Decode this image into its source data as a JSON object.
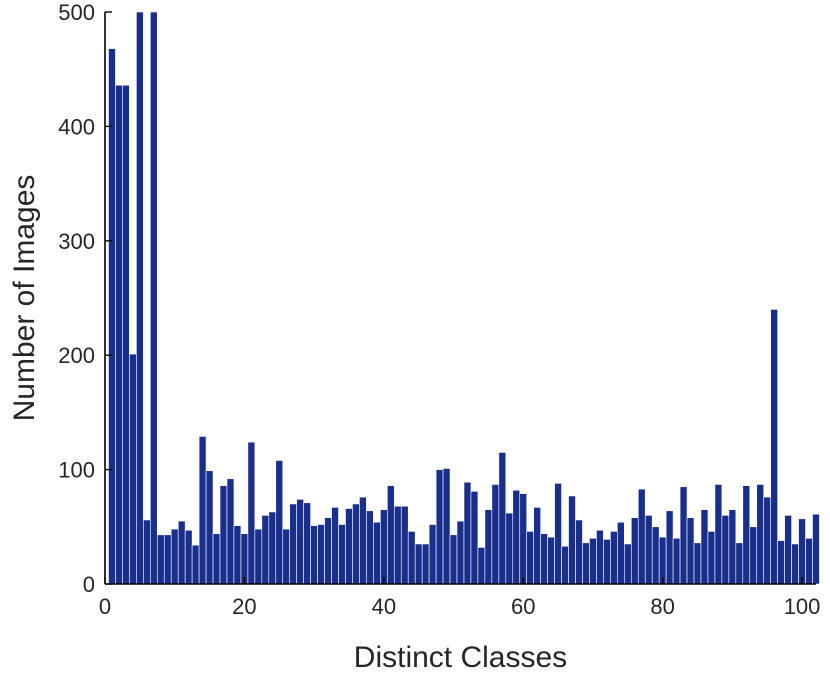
{
  "chart_data": {
    "type": "bar",
    "title": "",
    "xlabel": "Distinct Classes",
    "ylabel": "Number of Images",
    "xlim": [
      0,
      102
    ],
    "ylim": [
      0,
      500
    ],
    "xticks": [
      "0",
      "20",
      "40",
      "60",
      "80",
      "100"
    ],
    "yticks": [
      "0",
      "100",
      "200",
      "300",
      "400",
      "500"
    ],
    "grid": false,
    "bar_color": "#1a2f8c",
    "x": [
      1,
      2,
      3,
      4,
      5,
      6,
      7,
      8,
      9,
      10,
      11,
      12,
      13,
      14,
      15,
      16,
      17,
      18,
      19,
      20,
      21,
      22,
      23,
      24,
      25,
      26,
      27,
      28,
      29,
      30,
      31,
      32,
      33,
      34,
      35,
      36,
      37,
      38,
      39,
      40,
      41,
      42,
      43,
      44,
      45,
      46,
      47,
      48,
      49,
      50,
      51,
      52,
      53,
      54,
      55,
      56,
      57,
      58,
      59,
      60,
      61,
      62,
      63,
      64,
      65,
      66,
      67,
      68,
      69,
      70,
      71,
      72,
      73,
      74,
      75,
      76,
      77,
      78,
      79,
      80,
      81,
      82,
      83,
      84,
      85,
      86,
      87,
      88,
      89,
      90,
      91,
      92,
      93,
      94,
      95,
      96,
      97,
      98,
      99,
      100,
      101,
      102
    ],
    "values": [
      468,
      436,
      436,
      201,
      500,
      56,
      500,
      43,
      43,
      48,
      55,
      47,
      34,
      129,
      99,
      44,
      86,
      92,
      51,
      44,
      124,
      48,
      60,
      63,
      108,
      48,
      70,
      74,
      71,
      51,
      52,
      58,
      67,
      52,
      66,
      70,
      76,
      64,
      54,
      65,
      86,
      68,
      68,
      46,
      35,
      35,
      52,
      100,
      101,
      43,
      55,
      89,
      81,
      32,
      65,
      87,
      115,
      62,
      82,
      79,
      46,
      67,
      44,
      41,
      88,
      33,
      77,
      56,
      36,
      40,
      47,
      39,
      46,
      54,
      35,
      58,
      83,
      60,
      50,
      41,
      64,
      40,
      85,
      58,
      36,
      65,
      46,
      87,
      60,
      65,
      36,
      86,
      50,
      87,
      76,
      240,
      38,
      60,
      35,
      57,
      40,
      61
    ]
  }
}
